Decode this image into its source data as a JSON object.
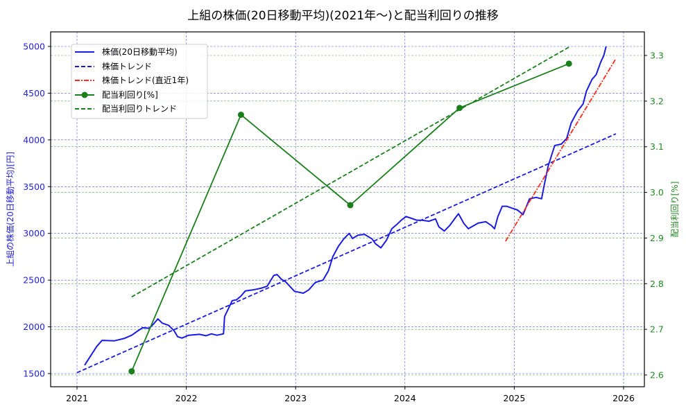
{
  "title": "上組の株価(20日移動平均)(2021年〜)と配当利回りの推移",
  "colors": {
    "price": "#1a1ae6",
    "price_trend": "#1a1ae6",
    "price_trend_recent": "#ff2a1a",
    "yield": "#1a7f1a",
    "yield_trend": "#1a7f1a",
    "grid_left": "#5555dd",
    "grid_right": "#55aa55"
  },
  "legend": {
    "items": [
      {
        "label": "株価(20日移動平均)",
        "style": "solid",
        "color": "#1a1ae6"
      },
      {
        "label": "株価トレンド",
        "style": "dashed",
        "color": "#1a1ae6"
      },
      {
        "label": "株価トレンド(直近1年)",
        "style": "dashdot",
        "color": "#ff2a1a"
      },
      {
        "label": "配当利回り[%]",
        "style": "solid-marker",
        "color": "#1a7f1a"
      },
      {
        "label": "配当利回りトレンド",
        "style": "dashed",
        "color": "#1a7f1a"
      }
    ]
  },
  "axes": {
    "x": {
      "ticks": [
        "2021",
        "2022",
        "2023",
        "2024",
        "2025",
        "2026"
      ]
    },
    "y_left": {
      "label": "上組の株価(20日移動平均)[円]",
      "ticks": [
        "1500",
        "2000",
        "2500",
        "3000",
        "3500",
        "4000",
        "4500",
        "5000"
      ]
    },
    "y_right": {
      "label": "配当利回り[%]",
      "ticks": [
        "2.6",
        "2.7",
        "2.8",
        "2.9",
        "3.0",
        "3.1",
        "3.2",
        "3.3"
      ]
    }
  },
  "chart_data": {
    "type": "line",
    "title": "上組の株価(20日移動平均)(2021年〜)と配当利回りの推移",
    "xlabel": "",
    "ylabel": "上組の株価(20日移動平均)[円]",
    "ylabel_right": "配当利回り[%]",
    "xlim": [
      2020.76,
      2026.2
    ],
    "ylim": [
      1350,
      5150
    ],
    "ylim_right": [
      2.575,
      3.35
    ],
    "grid": true,
    "legend_position": "upper left",
    "series": [
      {
        "name": "株価(20日移動平均)",
        "axis": "left",
        "style": "solid",
        "x": [
          2021.07,
          2021.12,
          2021.18,
          2021.23,
          2021.34,
          2021.43,
          2021.5,
          2021.56,
          2021.6,
          2021.66,
          2021.7,
          2021.74,
          2021.78,
          2021.84,
          2021.89,
          2021.92,
          2021.96,
          2022.02,
          2022.12,
          2022.18,
          2022.23,
          2022.28,
          2022.34,
          2022.35,
          2022.42,
          2022.46,
          2022.5,
          2022.54,
          2022.61,
          2022.69,
          2022.74,
          2022.8,
          2022.83,
          2022.87,
          2022.91,
          2022.99,
          2023.07,
          2023.12,
          2023.18,
          2023.25,
          2023.3,
          2023.34,
          2023.39,
          2023.44,
          2023.49,
          2023.52,
          2023.57,
          2023.63,
          2023.7,
          2023.73,
          2023.78,
          2023.83,
          2023.88,
          2023.93,
          2023.97,
          2024.01,
          2024.05,
          2024.11,
          2024.16,
          2024.22,
          2024.28,
          2024.31,
          2024.36,
          2024.41,
          2024.46,
          2024.49,
          2024.54,
          2024.58,
          2024.67,
          2024.74,
          2024.79,
          2024.82,
          2024.85,
          2024.89,
          2024.93,
          2024.98,
          2025.03,
          2025.08,
          2025.14,
          2025.2,
          2025.25,
          2025.27,
          2025.31,
          2025.37,
          2025.43,
          2025.48,
          2025.52,
          2025.58,
          2025.63,
          2025.66,
          2025.71,
          2025.75,
          2025.79,
          2025.82,
          2025.84
        ],
        "values": [
          1590,
          1680,
          1790,
          1855,
          1850,
          1875,
          1910,
          1960,
          1990,
          1985,
          2030,
          2085,
          2040,
          2015,
          1955,
          1895,
          1880,
          1910,
          1920,
          1905,
          1925,
          1910,
          1925,
          2110,
          2280,
          2290,
          2330,
          2385,
          2395,
          2415,
          2435,
          2550,
          2560,
          2510,
          2480,
          2380,
          2360,
          2395,
          2475,
          2500,
          2600,
          2750,
          2860,
          2940,
          3000,
          2945,
          2980,
          2990,
          2940,
          2890,
          2845,
          2925,
          3050,
          3100,
          3145,
          3180,
          3165,
          3140,
          3140,
          3130,
          3155,
          3070,
          3025,
          3085,
          3165,
          3210,
          3105,
          3050,
          3110,
          3125,
          3085,
          3050,
          3180,
          3290,
          3290,
          3270,
          3250,
          3200,
          3370,
          3385,
          3370,
          3495,
          3720,
          3940,
          3955,
          4015,
          4180,
          4310,
          4385,
          4520,
          4645,
          4700,
          4830,
          4905,
          5000
        ]
      },
      {
        "name": "株価トレンド",
        "axis": "left",
        "style": "dashed",
        "x": [
          2021.0,
          2025.93
        ],
        "values": [
          1510,
          4065
        ]
      },
      {
        "name": "株価トレンド(直近1年)",
        "axis": "left",
        "style": "dashdot",
        "x": [
          2024.92,
          2025.93
        ],
        "values": [
          2915,
          4870
        ]
      },
      {
        "name": "配当利回り[%]",
        "axis": "right",
        "style": "solid-marker",
        "x": [
          2021.5,
          2022.5,
          2023.5,
          2024.5,
          2025.5
        ],
        "values": [
          2.608,
          3.17,
          2.972,
          3.185,
          3.282
        ]
      },
      {
        "name": "配当利回りトレンド",
        "axis": "right",
        "style": "dashed",
        "x": [
          2021.5,
          2025.5
        ],
        "values": [
          2.771,
          3.318
        ]
      }
    ]
  }
}
